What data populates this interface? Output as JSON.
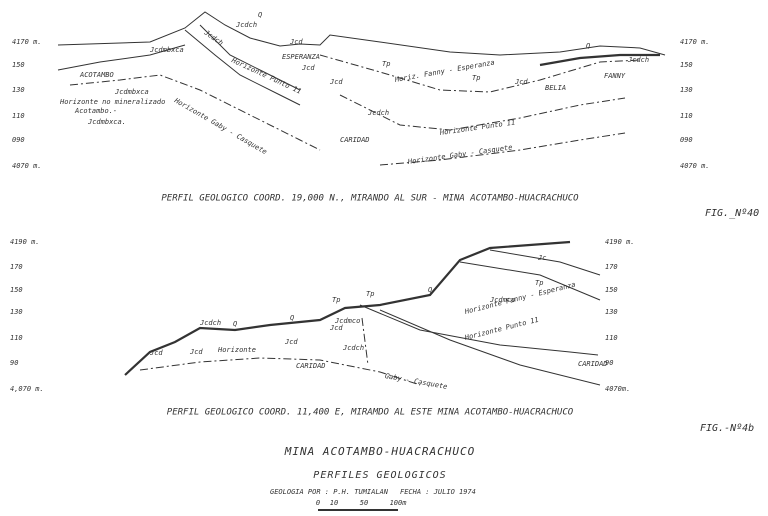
{
  "profiles": [
    {
      "axis_left": [
        "4170 m.",
        "150",
        "130",
        "110",
        "090",
        "4070 m."
      ],
      "axis_right": [
        "4170 m.",
        "150",
        "130",
        "110",
        "090",
        "4070 m."
      ],
      "labels": [
        "Jcdch",
        "Q",
        "Jcdmbxca",
        "Jcdch",
        "Horizonte Punto 11",
        "ESPERANZA",
        "Jcd",
        "Jcd",
        "Tp",
        "Tp",
        "Q",
        "Jcdch",
        "ACOTAMBO",
        "Jcdmbxca",
        "Horizonte no mineralizado",
        "Acotambo.-",
        "Jcdmbxca.",
        "Horizonte Gaby - Casquete",
        "Jcd",
        "Horiz. Fanny - Esperanza",
        "Jcd",
        "BELIA",
        "FANNY",
        "Jcdch",
        "Horizonte Punto 11",
        "CARIDAD",
        "Horizonte Gaby - Casquete"
      ],
      "caption": "PERFIL GEOLOGICO COORD. 19,000 N., MIRANDO AL SUR - MINA ACOTAMBO-HUACRACHUCO",
      "figure": "FIG._Nº40"
    },
    {
      "axis_left": [
        "4190 m.",
        "170",
        "150",
        "130",
        "110",
        "90",
        "4,070 m."
      ],
      "axis_right": [
        "4190 m.",
        "170",
        "150",
        "130",
        "110",
        "90",
        "4070m."
      ],
      "labels": [
        "Jcdch",
        "Q",
        "Q",
        "Jcd",
        "Jcd",
        "Horizonte",
        "Jcd",
        "Jcd",
        "Jcdmco",
        "Jcdch",
        "Tp",
        "Tp",
        "Q",
        "Jcdmco",
        "Horizonte Fanny - Esperanza",
        "Horizonte Punto 11",
        "Tp",
        "Jc",
        "CARIDAD",
        "Gaby - Casquete",
        "CARIDAD"
      ],
      "caption": "PERFIL GEOLOGICO COORD. 11,400 E, MIRAMDO AL ESTE MINA ACOTAMBO-HUACRACHUCO",
      "figure": "FIG.-Nº4b"
    }
  ],
  "title_block": {
    "mine": "MINA ACOTAMBO-HUACRACHUCO",
    "subtitle": "PERFILES GEOLOGICOS",
    "author": "GEOLOGIA POR : P.H. TUMIALAN",
    "date": "FECHA : JULIO 1974",
    "scale": [
      "0",
      "10",
      "50",
      "100m"
    ]
  }
}
